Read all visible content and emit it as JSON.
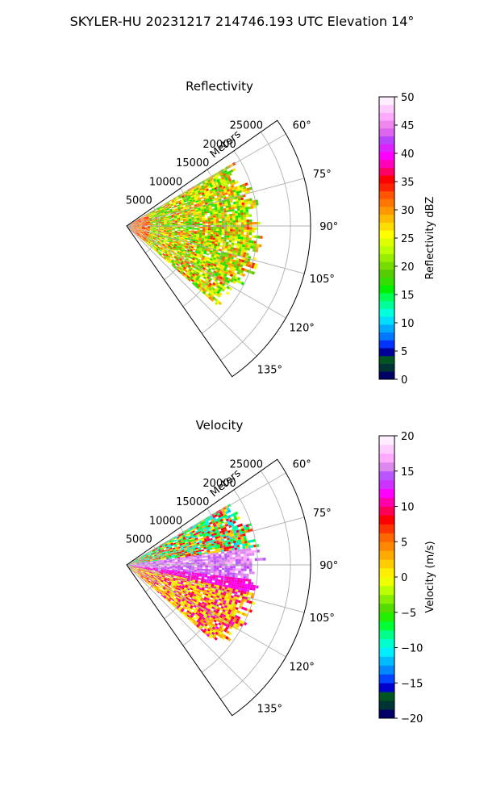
{
  "figure": {
    "suptitle": "SKYLER-HU  20231217  214746.193 UTC Elevation 14°"
  },
  "chart_data": [
    {
      "type": "heatmap",
      "projection": "polar-sector",
      "title": "Reflectivity",
      "r_axis_label": "Meters",
      "r_ticks": [
        5000,
        10000,
        15000,
        20000,
        25000
      ],
      "r_tick_labels": [
        "5000",
        "10000",
        "15000",
        "20000",
        "25000"
      ],
      "theta_range_deg": [
        55,
        145
      ],
      "theta_ticks": [
        60,
        75,
        90,
        105,
        120,
        135
      ],
      "theta_tick_labels": [
        "60°",
        "75°",
        "90°",
        "105°",
        "120°",
        "135°"
      ],
      "grid": true,
      "colorbar": {
        "label": "Reflectivity dBZ",
        "range": [
          0,
          50
        ],
        "ticks": [
          0,
          5,
          10,
          15,
          20,
          25,
          30,
          35,
          40,
          45,
          50
        ],
        "tick_labels": [
          "0",
          "5",
          "10",
          "15",
          "20",
          "25",
          "30",
          "35",
          "40",
          "45",
          "50"
        ],
        "colors": [
          "#000066",
          "#003333",
          "#005522",
          "#000099",
          "#0033ff",
          "#0077ff",
          "#00aaff",
          "#00ddff",
          "#00ffdd",
          "#00ff99",
          "#00ff55",
          "#00ee00",
          "#33dd00",
          "#55cc00",
          "#77dd00",
          "#99ee00",
          "#bbff00",
          "#ddff00",
          "#ffff00",
          "#ffdd00",
          "#ffbb00",
          "#ff9900",
          "#ff7700",
          "#ff5500",
          "#ff2200",
          "#ff0000",
          "#ff0066",
          "#ff00bb",
          "#ff00ff",
          "#dd22ff",
          "#bb44ff",
          "#dd66ee",
          "#ee88ee",
          "#ffaaff",
          "#ffccff",
          "#ffeeff"
        ]
      },
      "echo_region": {
        "theta_range_deg": [
          60,
          132
        ],
        "r_max_m": 21000,
        "dominant_values": [
          18,
          20,
          25,
          28,
          32
        ]
      }
    },
    {
      "type": "heatmap",
      "projection": "polar-sector",
      "title": "Velocity",
      "r_axis_label": "Meters",
      "r_ticks": [
        5000,
        10000,
        15000,
        20000,
        25000
      ],
      "r_tick_labels": [
        "5000",
        "10000",
        "15000",
        "20000",
        "25000"
      ],
      "theta_range_deg": [
        55,
        145
      ],
      "theta_ticks": [
        60,
        75,
        90,
        105,
        120,
        135
      ],
      "theta_tick_labels": [
        "60°",
        "75°",
        "90°",
        "105°",
        "120°",
        "135°"
      ],
      "grid": true,
      "colorbar": {
        "label": "Velocity (m/s)",
        "range": [
          -20,
          20
        ],
        "ticks": [
          -20,
          -15,
          -10,
          -5,
          0,
          5,
          10,
          15,
          20
        ],
        "tick_labels": [
          "−20",
          "−15",
          "−10",
          "−5",
          "0",
          "5",
          "10",
          "15",
          "20"
        ],
        "colors": [
          "#000066",
          "#003333",
          "#005522",
          "#0000cc",
          "#0044ff",
          "#0088ff",
          "#00bbff",
          "#00eeff",
          "#00ffcc",
          "#00ff88",
          "#00ff33",
          "#22ee00",
          "#55dd00",
          "#88ee00",
          "#bbff00",
          "#eeff00",
          "#ffee00",
          "#ffcc00",
          "#ffaa00",
          "#ff8800",
          "#ff6600",
          "#ff3300",
          "#ff0000",
          "#ff0055",
          "#ff00aa",
          "#ff00ff",
          "#cc33ff",
          "#bb55ff",
          "#dd88ee",
          "#ffaaff",
          "#ffccff",
          "#ffeeff"
        ]
      },
      "echo_region": {
        "theta_range_deg": [
          60,
          132
        ],
        "r_max_m": 21000,
        "pattern": {
          "upper_sector_deg": [
            60,
            88
          ],
          "upper_values": [
            -10,
            -7,
            2,
            8
          ],
          "band_deg": [
            90,
            97
          ],
          "band_values": [
            14,
            16
          ],
          "lower_sector_deg": [
            97,
            132
          ],
          "lower_values": [
            10,
            3,
            0
          ]
        }
      }
    }
  ]
}
